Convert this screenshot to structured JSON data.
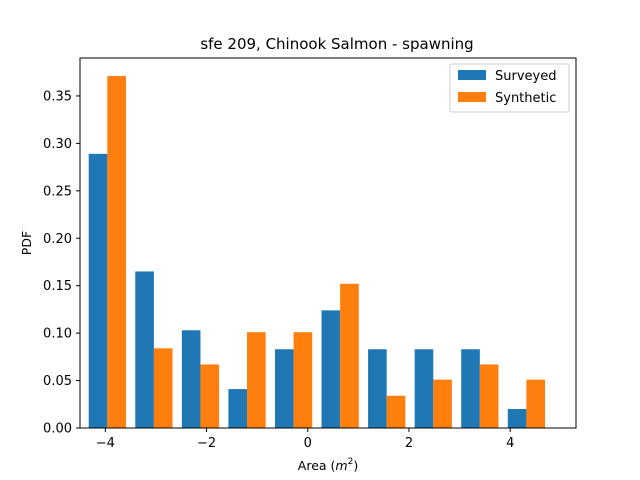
{
  "chart_data": {
    "type": "bar",
    "title": "sfe 209, Chinook Salmon - spawning",
    "xlabel": "Area (m²)",
    "xlabel_base": "Area (",
    "xlabel_var": "m",
    "xlabel_sup": "2",
    "xlabel_end": ")",
    "ylabel": "PDF",
    "xlim": [
      -4.5,
      5.3
    ],
    "ylim": [
      0,
      0.39
    ],
    "xticks": [
      -4,
      -2,
      0,
      2,
      4
    ],
    "xtick_labels": [
      "−4",
      "−2",
      "0",
      "2",
      "4"
    ],
    "yticks": [
      0.0,
      0.05,
      0.1,
      0.15,
      0.2,
      0.25,
      0.3,
      0.35
    ],
    "ytick_labels": [
      "0.00",
      "0.05",
      "0.10",
      "0.15",
      "0.20",
      "0.25",
      "0.30",
      "0.35"
    ],
    "bin_centers": [
      -3.96,
      -3.04,
      -2.12,
      -1.2,
      -0.28,
      0.64,
      1.56,
      2.48,
      3.4,
      4.32
    ],
    "bar_width": 0.368,
    "legend_position": "upper right",
    "series": [
      {
        "name": "Surveyed",
        "color": "#1f77b4",
        "values": [
          0.289,
          0.165,
          0.103,
          0.041,
          0.083,
          0.124,
          0.083,
          0.083,
          0.083,
          0.02
        ]
      },
      {
        "name": "Synthetic",
        "color": "#ff7f0e",
        "values": [
          0.371,
          0.084,
          0.067,
          0.101,
          0.101,
          0.152,
          0.034,
          0.051,
          0.067,
          0.051
        ]
      }
    ]
  }
}
